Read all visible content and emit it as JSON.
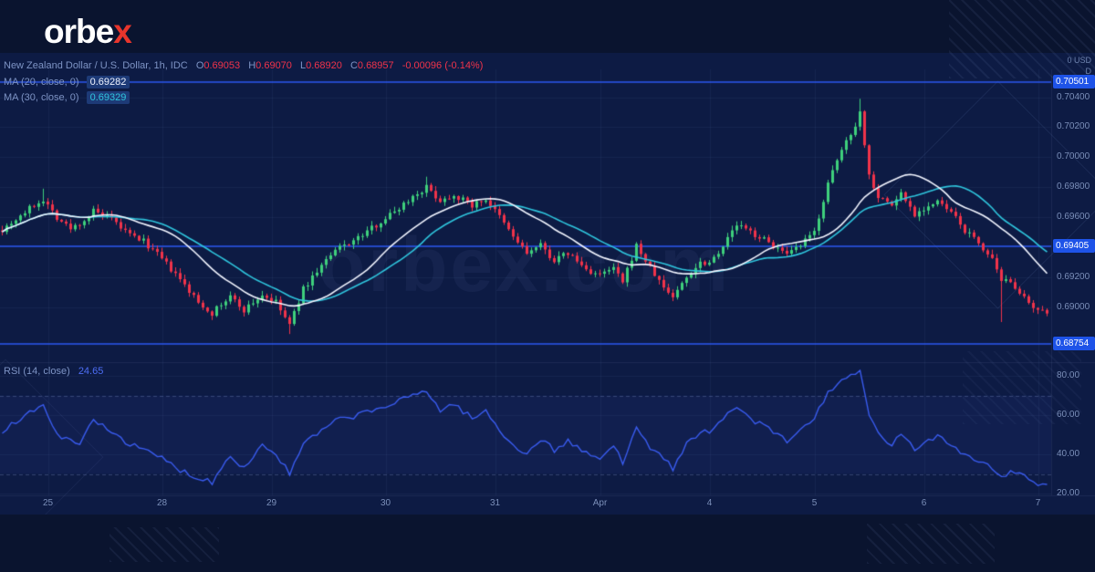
{
  "brand": {
    "logo_main": "orbe",
    "logo_accent": "x"
  },
  "chart": {
    "watermark": "orbex.com"
  },
  "header": {
    "title": "New Zealand Dollar / U.S. Dollar, 1h, IDC",
    "ohlc": {
      "o_label": "O",
      "o": "0.69053",
      "h_label": "H",
      "h": "0.69070",
      "l_label": "L",
      "l": "0.68920",
      "c_label": "C",
      "c": "0.68957",
      "change": "-0.00096 (-0.14%)"
    }
  },
  "indicators": {
    "ma20": {
      "label": "MA (20, close, 0)",
      "value": "0.69282"
    },
    "ma30": {
      "label": "MA (30, close, 0)",
      "value": "0.69329"
    },
    "rsi": {
      "label": "RSI (14, close)",
      "value_text": "24.65"
    }
  },
  "price_axis": {
    "header": "0 USD",
    "sub": "D"
  },
  "colors": {
    "up": "#3fd07c",
    "down": "#f0334a",
    "ma20": "#f2f5ff",
    "ma30": "#2fc5dd",
    "level": "#2b59f0",
    "rsi": "#3a5cf0",
    "tag_bg": "#1e53e8",
    "logo_accent": "#e8352c"
  },
  "chart_data": {
    "type": "candlestick",
    "title": "New Zealand Dollar / U.S. Dollar, 1h, IDC",
    "bars": 230,
    "ylim": [
      0.68754,
      0.70501
    ],
    "levels": [
      0.70501,
      0.69405,
      0.68754
    ],
    "last_close": 0.68957,
    "price_ticks": [
      0.704,
      0.702,
      0.7,
      0.698,
      0.696,
      0.692,
      0.69
    ],
    "time_ticks": [
      {
        "label": "25",
        "bar": 10
      },
      {
        "label": "28",
        "bar": 35
      },
      {
        "label": "29",
        "bar": 59
      },
      {
        "label": "30",
        "bar": 84
      },
      {
        "label": "31",
        "bar": 108
      },
      {
        "label": "Apr",
        "bar": 131
      },
      {
        "label": "4",
        "bar": 155
      },
      {
        "label": "5",
        "bar": 178
      },
      {
        "label": "6",
        "bar": 202
      },
      {
        "label": "7",
        "bar": 227
      }
    ],
    "price_anchors": [
      [
        0,
        0.6952
      ],
      [
        4,
        0.6961
      ],
      [
        7,
        0.6968
      ],
      [
        9,
        0.6972
      ],
      [
        12,
        0.696
      ],
      [
        15,
        0.6952
      ],
      [
        18,
        0.6958
      ],
      [
        20,
        0.6964
      ],
      [
        24,
        0.6958
      ],
      [
        28,
        0.6948
      ],
      [
        31,
        0.6944
      ],
      [
        35,
        0.6932
      ],
      [
        39,
        0.6918
      ],
      [
        43,
        0.6903
      ],
      [
        46,
        0.6896
      ],
      [
        50,
        0.6907
      ],
      [
        53,
        0.6898
      ],
      [
        57,
        0.6908
      ],
      [
        60,
        0.6903
      ],
      [
        63,
        0.6888
      ],
      [
        66,
        0.6912
      ],
      [
        70,
        0.6928
      ],
      [
        74,
        0.694
      ],
      [
        78,
        0.6946
      ],
      [
        82,
        0.6955
      ],
      [
        86,
        0.6964
      ],
      [
        90,
        0.6974
      ],
      [
        93,
        0.698
      ],
      [
        96,
        0.6971
      ],
      [
        99,
        0.6975
      ],
      [
        103,
        0.6968
      ],
      [
        106,
        0.6972
      ],
      [
        109,
        0.696
      ],
      [
        112,
        0.6947
      ],
      [
        115,
        0.6936
      ],
      [
        118,
        0.6941
      ],
      [
        121,
        0.6931
      ],
      [
        124,
        0.6936
      ],
      [
        128,
        0.6925
      ],
      [
        131,
        0.6921
      ],
      [
        134,
        0.6926
      ],
      [
        136,
        0.6916
      ],
      [
        139,
        0.6941
      ],
      [
        142,
        0.6926
      ],
      [
        145,
        0.6913
      ],
      [
        147,
        0.6907
      ],
      [
        150,
        0.692
      ],
      [
        153,
        0.693
      ],
      [
        155,
        0.693
      ],
      [
        158,
        0.6941
      ],
      [
        161,
        0.6955
      ],
      [
        164,
        0.695
      ],
      [
        167,
        0.6945
      ],
      [
        170,
        0.6939
      ],
      [
        172,
        0.6934
      ],
      [
        175,
        0.6941
      ],
      [
        178,
        0.695
      ],
      [
        181,
        0.6982
      ],
      [
        184,
        0.7005
      ],
      [
        187,
        0.7022
      ],
      [
        188,
        0.703
      ],
      [
        190,
        0.6988
      ],
      [
        192,
        0.6974
      ],
      [
        195,
        0.6968
      ],
      [
        197,
        0.6976
      ],
      [
        200,
        0.6962
      ],
      [
        202,
        0.6966
      ],
      [
        205,
        0.697
      ],
      [
        208,
        0.6963
      ],
      [
        211,
        0.6951
      ],
      [
        214,
        0.6943
      ],
      [
        217,
        0.6931
      ],
      [
        219,
        0.6916
      ],
      [
        221,
        0.6918
      ],
      [
        223,
        0.691
      ],
      [
        225,
        0.6901
      ],
      [
        227,
        0.6897
      ],
      [
        229,
        0.68957
      ]
    ],
    "wick_overrides": [
      {
        "bar": 9,
        "high": 0.6979
      },
      {
        "bar": 63,
        "low": 0.6882
      },
      {
        "bar": 93,
        "high": 0.6987
      },
      {
        "bar": 188,
        "high": 0.7039
      },
      {
        "bar": 219,
        "low": 0.689
      }
    ],
    "ma": [
      {
        "period": 20,
        "value": 0.69282
      },
      {
        "period": 30,
        "value": 0.69329
      }
    ],
    "rsi": {
      "value": 24.65,
      "ticks": [
        80,
        60,
        40,
        20
      ],
      "bands": [
        70,
        30
      ],
      "anchors": [
        [
          0,
          52
        ],
        [
          5,
          60
        ],
        [
          9,
          64
        ],
        [
          13,
          48
        ],
        [
          17,
          45
        ],
        [
          20,
          58
        ],
        [
          24,
          52
        ],
        [
          28,
          45
        ],
        [
          31,
          42
        ],
        [
          35,
          38
        ],
        [
          39,
          32
        ],
        [
          43,
          28
        ],
        [
          46,
          26
        ],
        [
          50,
          40
        ],
        [
          53,
          33
        ],
        [
          57,
          45
        ],
        [
          60,
          40
        ],
        [
          63,
          30
        ],
        [
          66,
          45
        ],
        [
          70,
          52
        ],
        [
          74,
          58
        ],
        [
          78,
          60
        ],
        [
          82,
          63
        ],
        [
          86,
          66
        ],
        [
          90,
          70
        ],
        [
          93,
          73
        ],
        [
          96,
          62
        ],
        [
          99,
          66
        ],
        [
          103,
          58
        ],
        [
          106,
          62
        ],
        [
          109,
          52
        ],
        [
          112,
          45
        ],
        [
          115,
          40
        ],
        [
          118,
          48
        ],
        [
          121,
          42
        ],
        [
          124,
          47
        ],
        [
          128,
          40
        ],
        [
          131,
          38
        ],
        [
          134,
          44
        ],
        [
          136,
          36
        ],
        [
          139,
          55
        ],
        [
          142,
          44
        ],
        [
          145,
          37
        ],
        [
          147,
          33
        ],
        [
          150,
          45
        ],
        [
          153,
          52
        ],
        [
          155,
          50
        ],
        [
          158,
          58
        ],
        [
          161,
          64
        ],
        [
          164,
          58
        ],
        [
          167,
          54
        ],
        [
          170,
          50
        ],
        [
          172,
          46
        ],
        [
          175,
          53
        ],
        [
          178,
          58
        ],
        [
          181,
          72
        ],
        [
          184,
          78
        ],
        [
          187,
          80
        ],
        [
          188,
          82
        ],
        [
          190,
          60
        ],
        [
          192,
          50
        ],
        [
          195,
          45
        ],
        [
          197,
          50
        ],
        [
          200,
          42
        ],
        [
          202,
          46
        ],
        [
          205,
          50
        ],
        [
          208,
          45
        ],
        [
          211,
          40
        ],
        [
          214,
          37
        ],
        [
          217,
          33
        ],
        [
          219,
          28
        ],
        [
          221,
          32
        ],
        [
          223,
          30
        ],
        [
          225,
          27
        ],
        [
          227,
          25
        ],
        [
          229,
          24.65
        ]
      ]
    }
  }
}
